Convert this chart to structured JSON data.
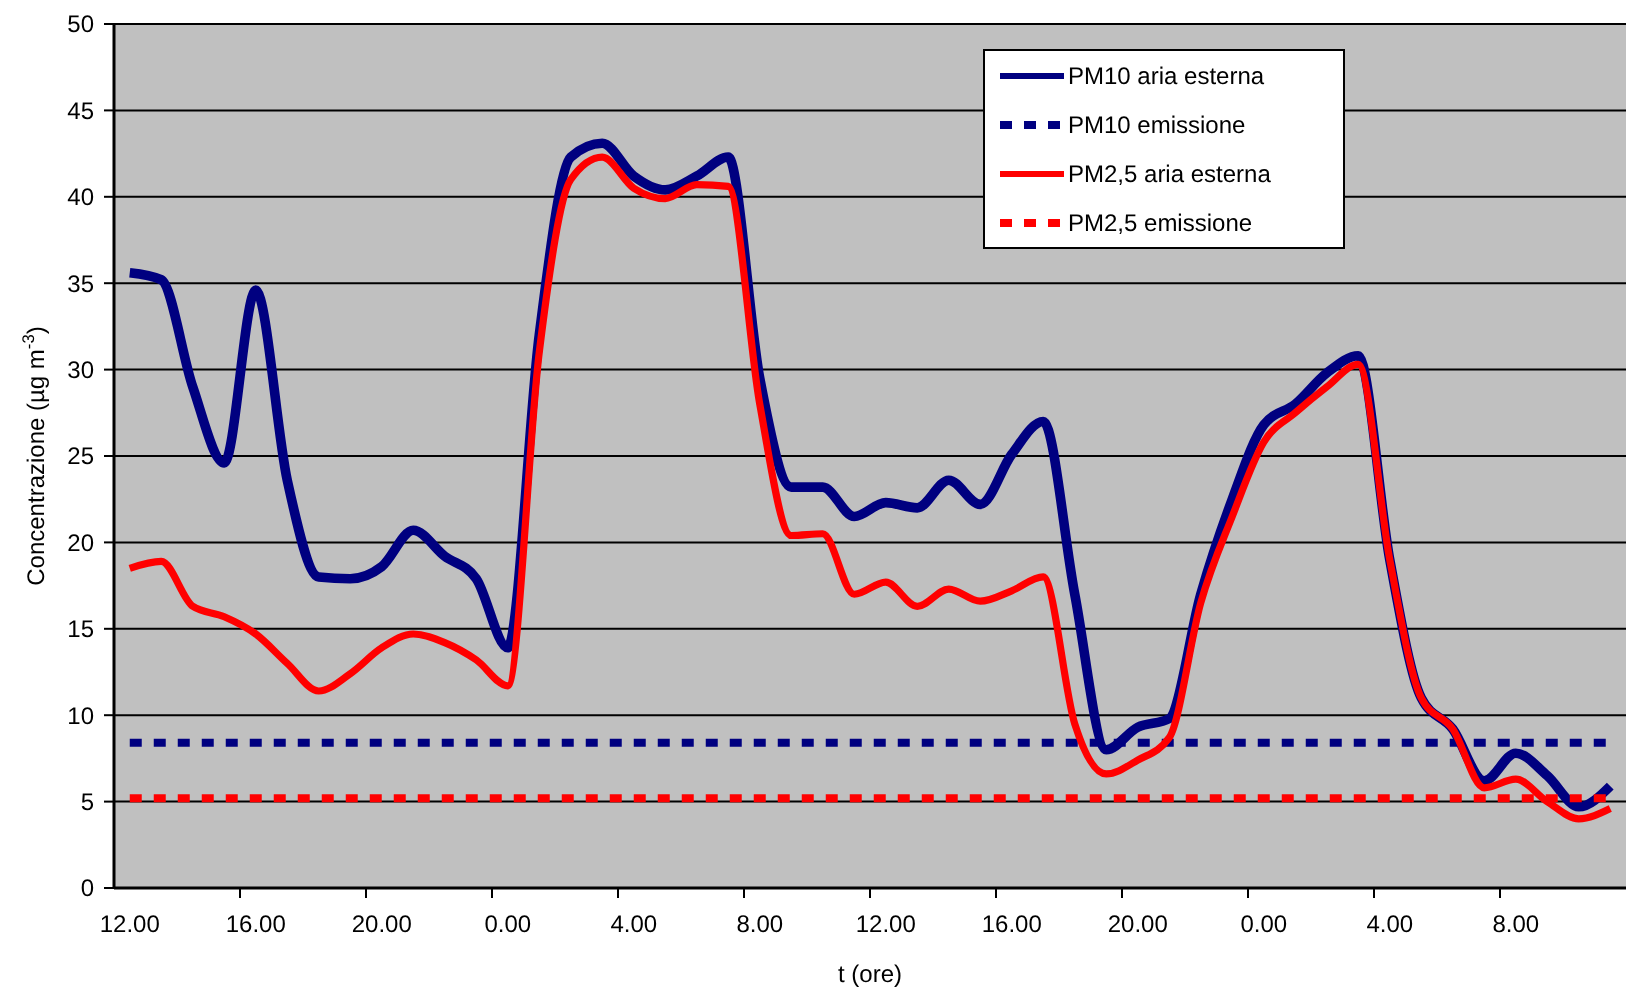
{
  "chart_data": {
    "type": "line",
    "xlabel": "t (ore)",
    "ylabel": "Concentrazione (µg m$^{-3}$)",
    "categories": [
      "12.00",
      null,
      null,
      null,
      "16.00",
      null,
      null,
      null,
      "20.00",
      null,
      null,
      null,
      "0.00",
      null,
      null,
      null,
      "4.00",
      null,
      null,
      null,
      "8.00",
      null,
      null,
      null,
      "12.00",
      null,
      null,
      null,
      "16.00",
      null,
      null,
      null,
      "20.00",
      null,
      null,
      null,
      "0.00",
      null,
      null,
      null,
      "4.00",
      null,
      null,
      null,
      "8.00",
      null,
      null,
      null
    ],
    "ylim": [
      0,
      50
    ],
    "yticks": [
      0,
      5,
      10,
      15,
      20,
      25,
      30,
      35,
      40,
      45,
      50
    ],
    "grid": "y",
    "legend": "top right",
    "marker": "none",
    "series": [
      {
        "name": "PM10 aria esterna",
        "color": "#000080",
        "line_style": "solid",
        "values": [
          35.6,
          35.2,
          29,
          24.6,
          34.6,
          23.6,
          18.0,
          17.9,
          18.6,
          20.7,
          19.2,
          17.9,
          13.9,
          32,
          42.3,
          43.1,
          41.2,
          40.4,
          41.2,
          42.3,
          29.5,
          23.2,
          23.2,
          21.5,
          22.3,
          22.0,
          23.6,
          22.2,
          25.1,
          27.0,
          17,
          8.0,
          9.3,
          9.8,
          17,
          22.5,
          26.8,
          28,
          29.8,
          30.8,
          19,
          11,
          9.2,
          6.2,
          7.8,
          6.5,
          4.7,
          5.9
        ]
      },
      {
        "name": "PM10 emissione",
        "color": "#000080",
        "line_style": "dashed",
        "values": [
          8.4,
          8.4,
          8.4,
          8.4,
          8.4,
          8.4,
          8.4,
          8.4,
          8.4,
          8.4,
          8.4,
          8.4,
          8.4,
          8.4,
          8.4,
          8.4,
          8.4,
          8.4,
          8.4,
          8.4,
          8.4,
          8.4,
          8.4,
          8.4,
          8.4,
          8.4,
          8.4,
          8.4,
          8.4,
          8.4,
          8.4,
          8.4,
          8.4,
          8.4,
          8.4,
          8.4,
          8.4,
          8.4,
          8.4,
          8.4,
          8.4,
          8.4,
          8.4,
          8.4,
          8.4,
          8.4,
          8.4,
          8.4
        ]
      },
      {
        "name": "PM2,5 aria esterna",
        "color": "#ff0000",
        "line_style": "solid",
        "values": [
          18.5,
          18.9,
          16.3,
          15.7,
          14.7,
          13,
          11.4,
          12.4,
          13.9,
          14.7,
          14.2,
          13.2,
          11.7,
          31,
          41,
          42.3,
          40.5,
          39.9,
          40.7,
          40.6,
          28,
          20.4,
          20.5,
          17.0,
          17.7,
          16.3,
          17.3,
          16.6,
          17.2,
          18.0,
          9.5,
          6.6,
          7.4,
          8.7,
          16.5,
          21.5,
          25.8,
          27.5,
          29,
          30.3,
          19,
          11,
          9.2,
          5.8,
          6.3,
          5,
          4.0,
          4.6
        ]
      },
      {
        "name": "PM2,5 emissione",
        "color": "#ff0000",
        "line_style": "dashed",
        "values": [
          5.2,
          5.2,
          5.2,
          5.2,
          5.2,
          5.2,
          5.2,
          5.2,
          5.2,
          5.2,
          5.2,
          5.2,
          5.2,
          5.2,
          5.2,
          5.2,
          5.2,
          5.2,
          5.2,
          5.2,
          5.2,
          5.2,
          5.2,
          5.2,
          5.2,
          5.2,
          5.2,
          5.2,
          5.2,
          5.2,
          5.2,
          5.2,
          5.2,
          5.2,
          5.2,
          5.2,
          5.2,
          5.2,
          5.2,
          5.2,
          5.2,
          5.2,
          5.2,
          5.2,
          5.2,
          5.2,
          5.2,
          5.2
        ]
      }
    ]
  }
}
